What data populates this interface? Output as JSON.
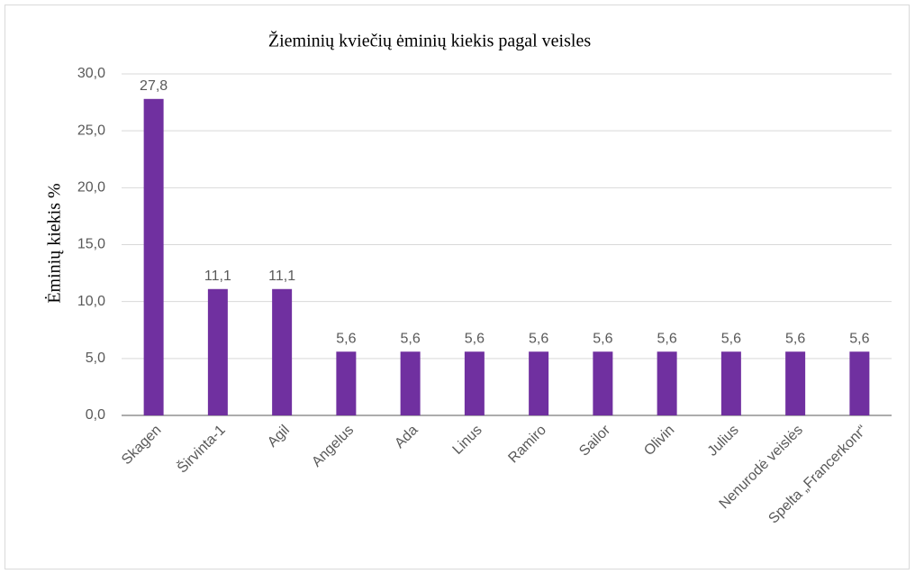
{
  "chart_data": {
    "type": "bar",
    "title": "Žieminių  kviečių ėminių  kiekis pagal veisles",
    "y_label": "Ėminių kiekis  %",
    "categories": [
      "Skagen",
      "Širvinta-1",
      "Agil",
      "Angelus",
      "Ada",
      "Linus",
      "Ramiro",
      "Sailor",
      "Olivin",
      "Julius",
      "Nenurodė veislės",
      "Spelta „Francerkonr“"
    ],
    "values": [
      27.8,
      11.1,
      11.1,
      5.6,
      5.6,
      5.6,
      5.6,
      5.6,
      5.6,
      5.6,
      5.6,
      5.6
    ],
    "value_labels": [
      "27,8",
      "11,1",
      "11,1",
      "5,6",
      "5,6",
      "5,6",
      "5,6",
      "5,6",
      "5,6",
      "5,6",
      "5,6",
      "5,6"
    ],
    "color": "#7030a0",
    "ylim": [
      0,
      30
    ],
    "yticks": [
      {
        "value": 0,
        "label": "0,0"
      },
      {
        "value": 5,
        "label": "5,0"
      },
      {
        "value": 10,
        "label": "10,0"
      },
      {
        "value": 15,
        "label": "15,0"
      },
      {
        "value": 20,
        "label": "20,0"
      },
      {
        "value": 25,
        "label": "25,0"
      },
      {
        "value": 30,
        "label": "30,0"
      }
    ],
    "grid": true
  }
}
